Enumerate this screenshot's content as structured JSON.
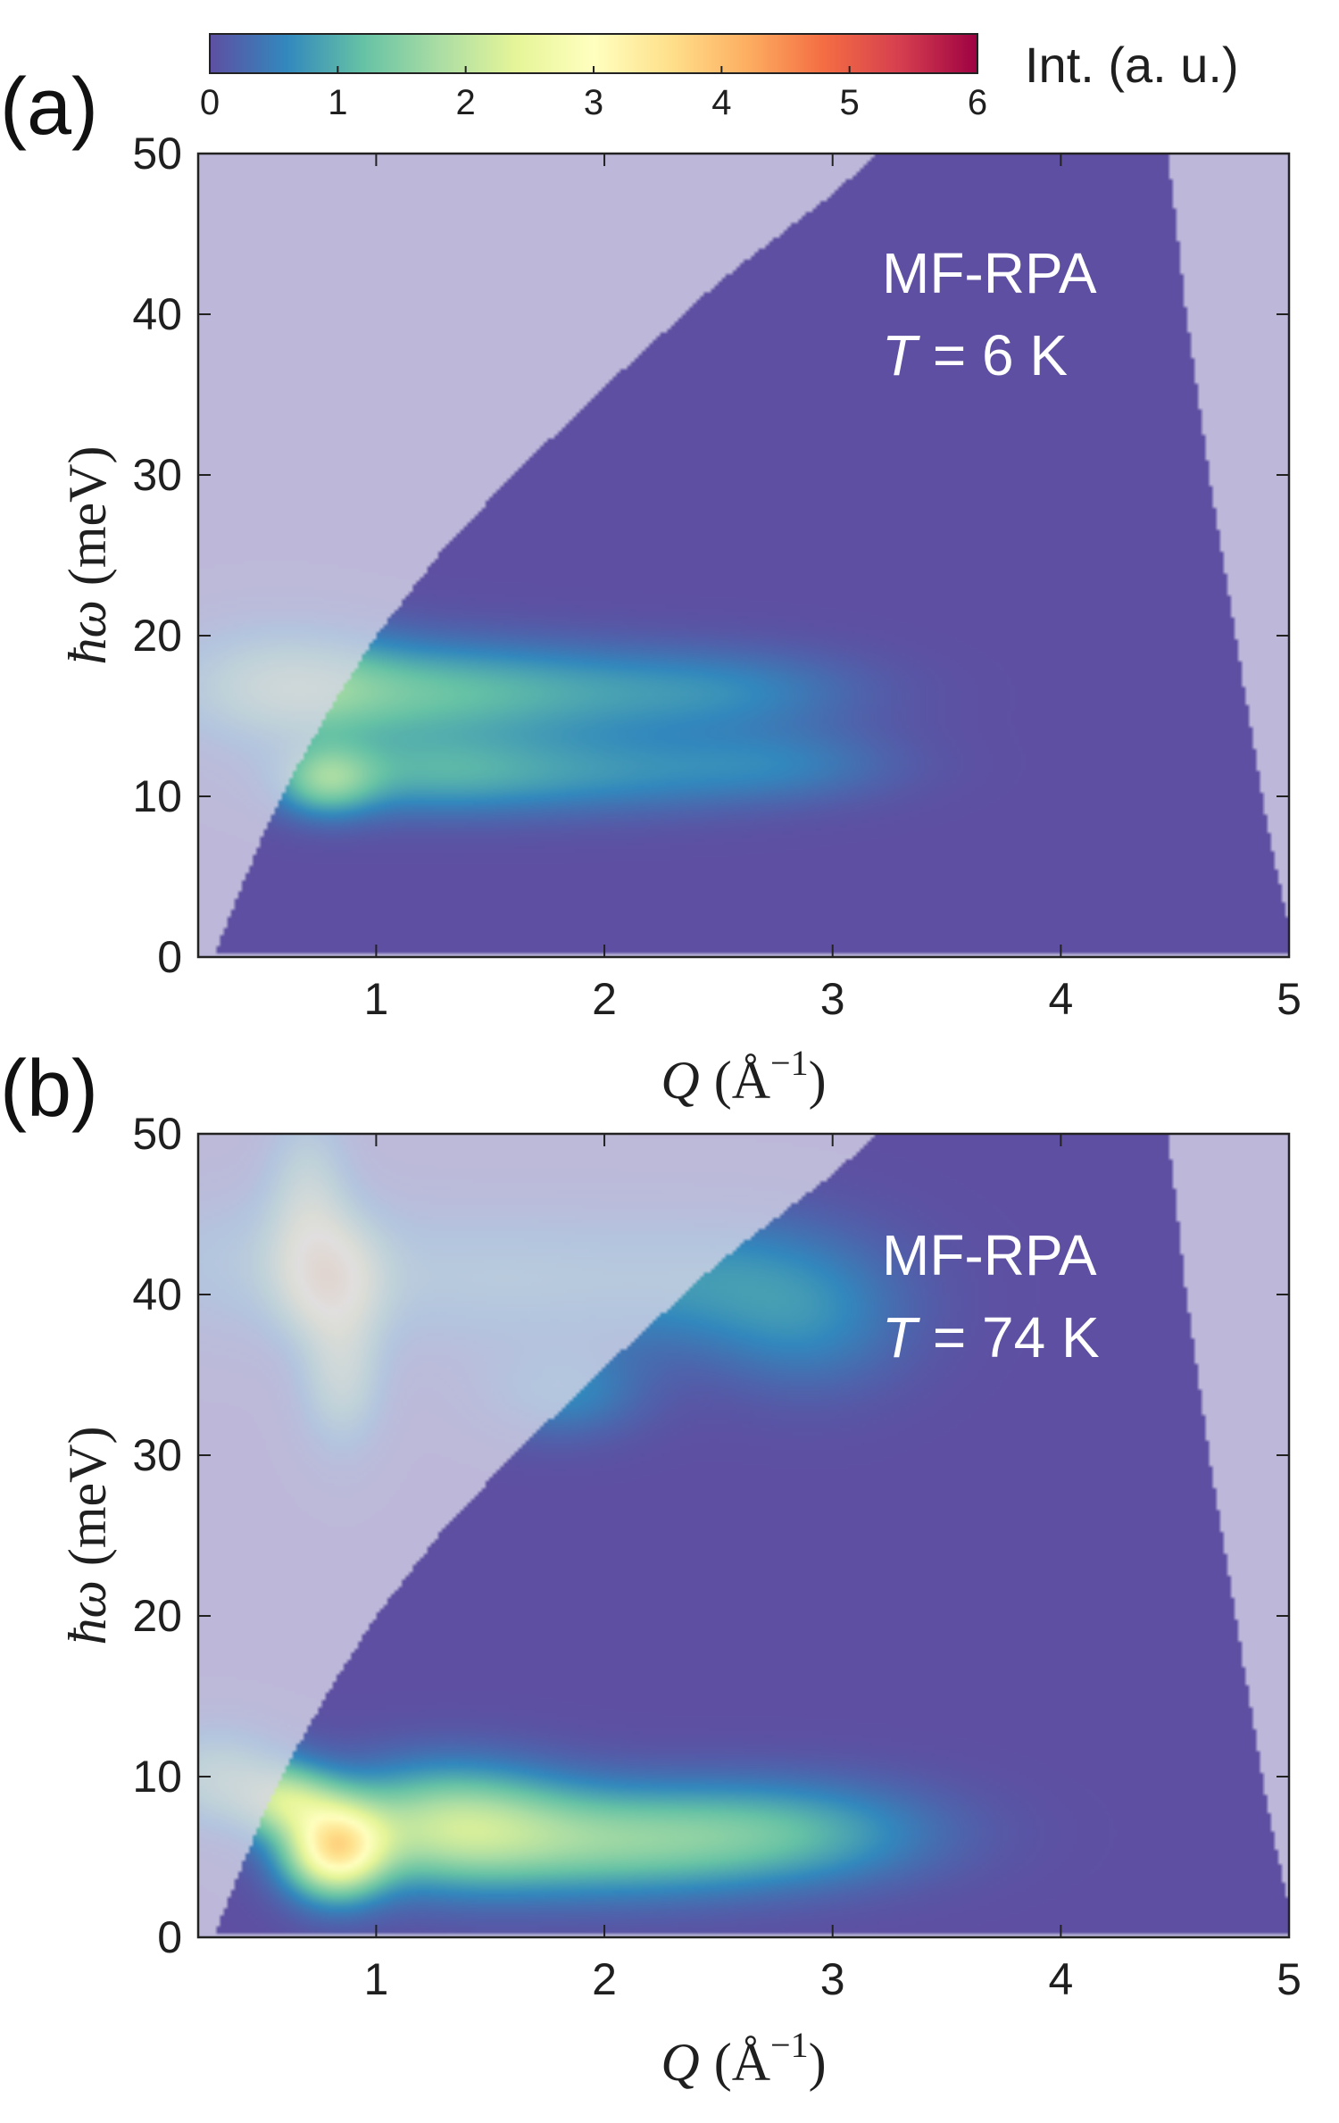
{
  "colorbar": {
    "label": "Int. (a. u.)",
    "range": [
      0,
      6
    ],
    "ticks": [
      "0",
      "1",
      "2",
      "3",
      "4",
      "5",
      "6"
    ],
    "colormap": [
      "#5e4fa2",
      "#3288bd",
      "#66c2a5",
      "#abdda4",
      "#e6f598",
      "#ffffbf",
      "#fee08b",
      "#fdae61",
      "#f46d43",
      "#d53e4f",
      "#9e0142"
    ]
  },
  "colors": {
    "background_zero": "#5e4fa2",
    "outside_coverage": "#d8d6e8",
    "annotation_text": "#ffffff"
  },
  "chart_data": [
    {
      "type": "heatmap",
      "panel_label": "(a)",
      "annotation_line1": "MF-RPA",
      "annotation_T": "T",
      "annotation_rest": " = 6 K",
      "xlabel_symbol": "Q",
      "xlabel_units": "(Å",
      "xlabel_exp": "−1",
      "xlabel_close": ")",
      "ylabel_symbol": "ħω",
      "ylabel_units": "(meV)",
      "xlim": [
        0.22,
        5.0
      ],
      "ylim": [
        0,
        50
      ],
      "xticks": [
        1,
        2,
        3,
        4,
        5
      ],
      "xtick_labels": [
        "1",
        "2",
        "3",
        "4",
        "5"
      ],
      "yticks": [
        0,
        10,
        20,
        30,
        40,
        50
      ],
      "ytick_labels": [
        "0",
        "10",
        "20",
        "30",
        "40",
        "50"
      ],
      "coverage": {
        "low_edge": [
          [
            0.3,
            0.5
          ],
          [
            0.4,
            4
          ],
          [
            0.5,
            7.5
          ],
          [
            0.6,
            10.5
          ],
          [
            0.7,
            13
          ],
          [
            0.8,
            15.5
          ],
          [
            1.0,
            20
          ],
          [
            1.3,
            25.5
          ],
          [
            1.6,
            30
          ],
          [
            2.0,
            35.5
          ],
          [
            2.5,
            42
          ],
          [
            3.0,
            47.5
          ],
          [
            3.2,
            50
          ]
        ],
        "high_edge": [
          [
            4.47,
            50
          ],
          [
            4.55,
            40
          ],
          [
            4.65,
            30
          ],
          [
            4.8,
            17
          ],
          [
            4.92,
            7
          ],
          [
            5.0,
            2
          ]
        ]
      },
      "features": [
        {
          "q": 0.55,
          "e": 17,
          "sq": 0.3,
          "se": 2.5,
          "amp": 1.1
        },
        {
          "q": 1.0,
          "e": 16.5,
          "sq": 0.5,
          "se": 2.2,
          "amp": 0.9
        },
        {
          "q": 1.8,
          "e": 16.5,
          "sq": 0.55,
          "se": 2.0,
          "amp": 0.65
        },
        {
          "q": 2.6,
          "e": 16.5,
          "sq": 0.4,
          "se": 1.8,
          "amp": 0.4
        },
        {
          "q": 0.78,
          "e": 11,
          "sq": 0.15,
          "se": 1.5,
          "amp": 1.2
        },
        {
          "q": 1.2,
          "e": 11.5,
          "sq": 0.4,
          "se": 1.8,
          "amp": 0.8
        },
        {
          "q": 2.0,
          "e": 11.5,
          "sq": 0.5,
          "se": 1.8,
          "amp": 0.6
        },
        {
          "q": 2.8,
          "e": 12,
          "sq": 0.35,
          "se": 1.6,
          "amp": 0.4
        }
      ]
    },
    {
      "type": "heatmap",
      "panel_label": "(b)",
      "annotation_line1": "MF-RPA",
      "annotation_T": "T",
      "annotation_rest": " = 74 K",
      "xlabel_symbol": "Q",
      "xlabel_units": "(Å",
      "xlabel_exp": "−1",
      "xlabel_close": ")",
      "ylabel_symbol": "ħω",
      "ylabel_units": "(meV)",
      "xlim": [
        0.22,
        5.0
      ],
      "ylim": [
        0,
        50
      ],
      "xticks": [
        1,
        2,
        3,
        4,
        5
      ],
      "xtick_labels": [
        "1",
        "2",
        "3",
        "4",
        "5"
      ],
      "yticks": [
        0,
        10,
        20,
        30,
        40,
        50
      ],
      "ytick_labels": [
        "0",
        "10",
        "20",
        "30",
        "40",
        "50"
      ],
      "coverage": {
        "low_edge": [
          [
            0.3,
            0.5
          ],
          [
            0.4,
            4
          ],
          [
            0.5,
            7.5
          ],
          [
            0.6,
            10.5
          ],
          [
            0.7,
            13
          ],
          [
            0.8,
            15.5
          ],
          [
            1.0,
            20
          ],
          [
            1.3,
            25.5
          ],
          [
            1.6,
            30
          ],
          [
            2.0,
            35.5
          ],
          [
            2.5,
            42
          ],
          [
            3.0,
            47.5
          ],
          [
            3.2,
            50
          ]
        ],
        "high_edge": [
          [
            4.47,
            50
          ],
          [
            4.55,
            40
          ],
          [
            4.65,
            30
          ],
          [
            4.8,
            17
          ],
          [
            4.92,
            7
          ],
          [
            5.0,
            2
          ]
        ]
      },
      "features": [
        {
          "q": 0.82,
          "e": 5.5,
          "sq": 0.15,
          "se": 2.0,
          "amp": 3.0
        },
        {
          "q": 0.6,
          "e": 8.5,
          "sq": 0.15,
          "se": 1.5,
          "amp": 1.5
        },
        {
          "q": 1.3,
          "e": 7.0,
          "sq": 0.35,
          "se": 2.5,
          "amp": 1.7
        },
        {
          "q": 2.0,
          "e": 6.0,
          "sq": 0.5,
          "se": 2.3,
          "amp": 1.3
        },
        {
          "q": 2.8,
          "e": 6.5,
          "sq": 0.45,
          "se": 2.2,
          "amp": 0.9
        },
        {
          "q": 0.3,
          "e": 10,
          "sq": 0.2,
          "se": 2.0,
          "amp": 1.4
        },
        {
          "q": 0.8,
          "e": 41,
          "sq": 0.15,
          "se": 2.5,
          "amp": 2.4
        },
        {
          "q": 0.85,
          "e": 35,
          "sq": 0.12,
          "se": 3.0,
          "amp": 1.6
        },
        {
          "q": 0.7,
          "e": 46,
          "sq": 0.12,
          "se": 3.5,
          "amp": 1.4
        },
        {
          "q": 0.5,
          "e": 42,
          "sq": 0.4,
          "se": 3.0,
          "amp": 0.7
        },
        {
          "q": 1.5,
          "e": 41,
          "sq": 0.5,
          "se": 3.0,
          "amp": 0.75
        },
        {
          "q": 1.8,
          "e": 34,
          "sq": 0.25,
          "se": 2.0,
          "amp": 0.6
        },
        {
          "q": 2.5,
          "e": 41,
          "sq": 0.45,
          "se": 3.0,
          "amp": 0.6
        },
        {
          "q": 2.9,
          "e": 38,
          "sq": 0.3,
          "se": 3.0,
          "amp": 0.45
        }
      ]
    }
  ]
}
